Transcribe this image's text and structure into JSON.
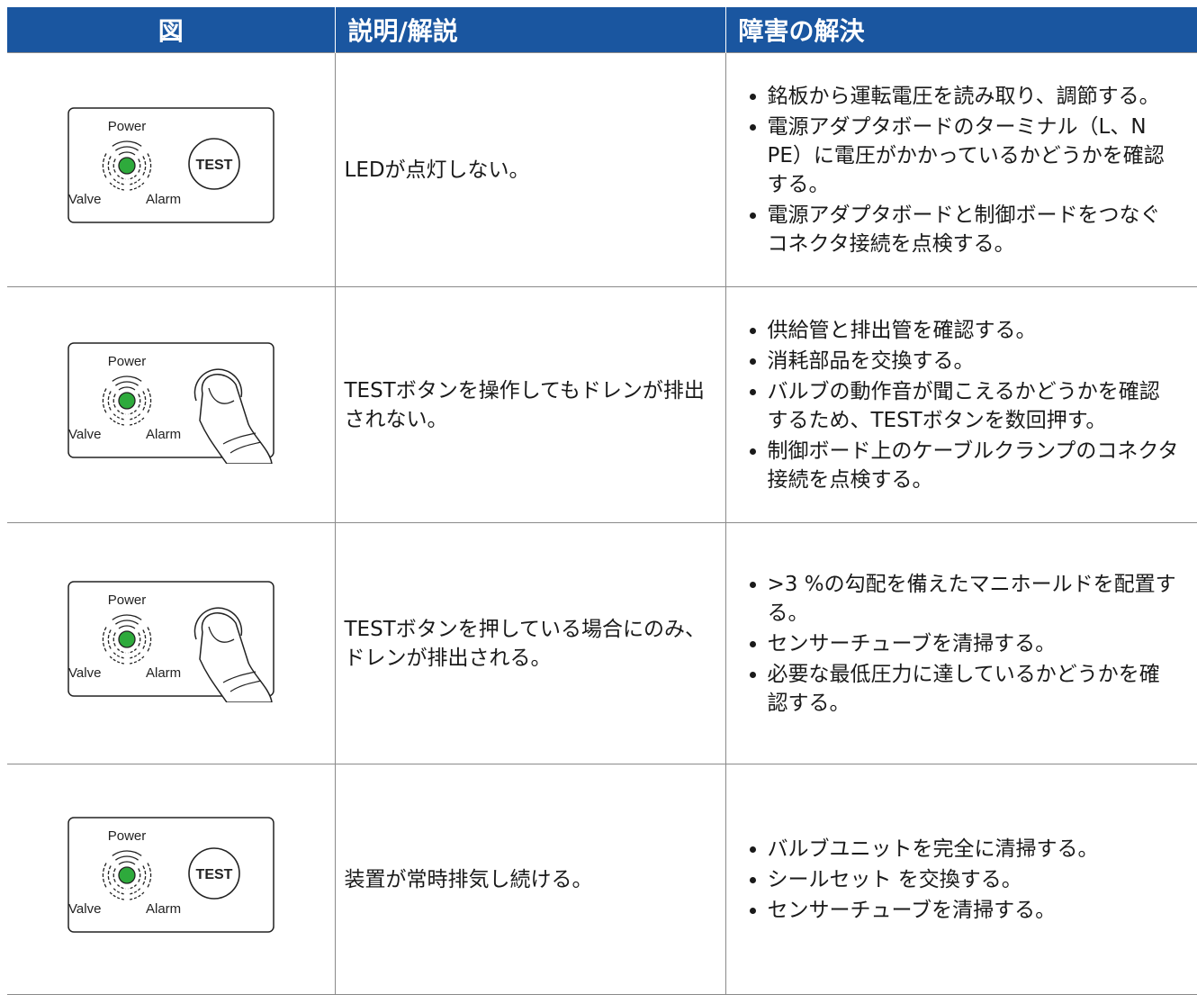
{
  "table": {
    "header": [
      "図",
      "説明/解説",
      "障害の解決"
    ],
    "rows": [
      {
        "figure": {
          "power": "Power",
          "valve": "Valve",
          "alarm": "Alarm",
          "button": "TEST"
        },
        "description": "LEDが点灯しない。",
        "solutions": [
          "銘板から運転電圧を読み取り、調節する。",
          "電源アダプタボードのターミナル（L、N PE）に電圧がかかっているかどうかを確認する。",
          "電源アダプタボードと制御ボードをつなぐコネクタ接続を点検する。"
        ]
      },
      {
        "figure": {
          "power": "Power",
          "valve": "Valve",
          "alarm": "Alarm"
        },
        "description": "TESTボタンを操作してもドレンが排出されない。",
        "solutions": [
          "供給管と排出管を確認する。",
          "消耗部品を交換する。",
          "バルブの動作音が聞こえるかどうかを確認するため、TESTボタンを数回押す。",
          "制御ボード上のケーブルクランプのコネクタ接続を点検する。"
        ]
      },
      {
        "figure": {
          "power": "Power",
          "valve": "Valve",
          "alarm": "Alarm"
        },
        "description": "TESTボタンを押している場合にのみ、ドレンが排出される。",
        "solutions": [
          ">3 %の勾配を備えたマニホールドを配置する。",
          "センサーチューブを清掃する。",
          "必要な最低圧力に達しているかどうかを確認する。"
        ]
      },
      {
        "figure": {
          "power": "Power",
          "valve": "Valve",
          "alarm": "Alarm",
          "button": "TEST"
        },
        "description": "装置が常時排気し続ける。",
        "solutions": [
          "バルブユニットを完全に清掃する。",
          "シールセット を交換する。",
          "センサーチューブを清掃する。"
        ]
      }
    ]
  }
}
